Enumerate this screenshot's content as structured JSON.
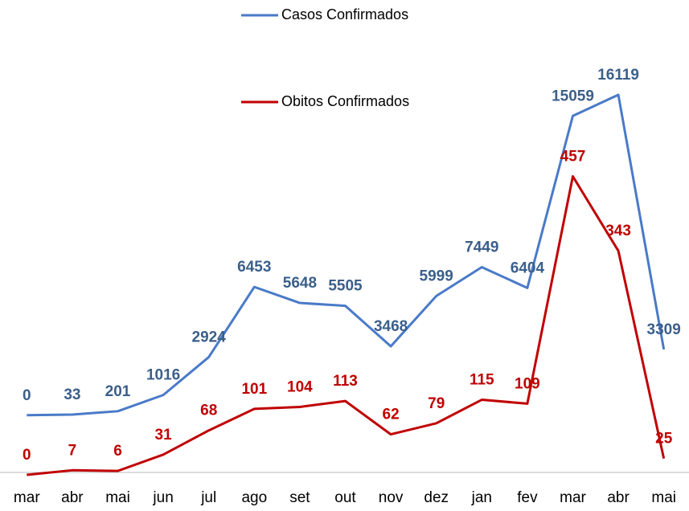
{
  "chart_data": {
    "type": "line",
    "categories": [
      "mar",
      "abr",
      "mai",
      "jun",
      "jul",
      "ago",
      "set",
      "out",
      "nov",
      "dez",
      "jan",
      "fev",
      "mar",
      "abr",
      "mai"
    ],
    "series": [
      {
        "name": "Casos Confirmados",
        "color": "#4a7ac8",
        "label_color": "#3b5f8a",
        "values": [
          0,
          33,
          201,
          1016,
          2924,
          6453,
          5648,
          5505,
          3468,
          5999,
          7449,
          6404,
          15059,
          16119,
          3309
        ]
      },
      {
        "name": "Obitos Confirmados",
        "color": "#c00000",
        "label_color": "#c00000",
        "axis": "y2",
        "values": [
          0,
          7,
          6,
          31,
          68,
          101,
          104,
          113,
          62,
          79,
          115,
          109,
          457,
          343,
          25
        ]
      }
    ],
    "ylim": [
      -3000,
      20000
    ],
    "y2lim": [
      0,
      700
    ]
  }
}
